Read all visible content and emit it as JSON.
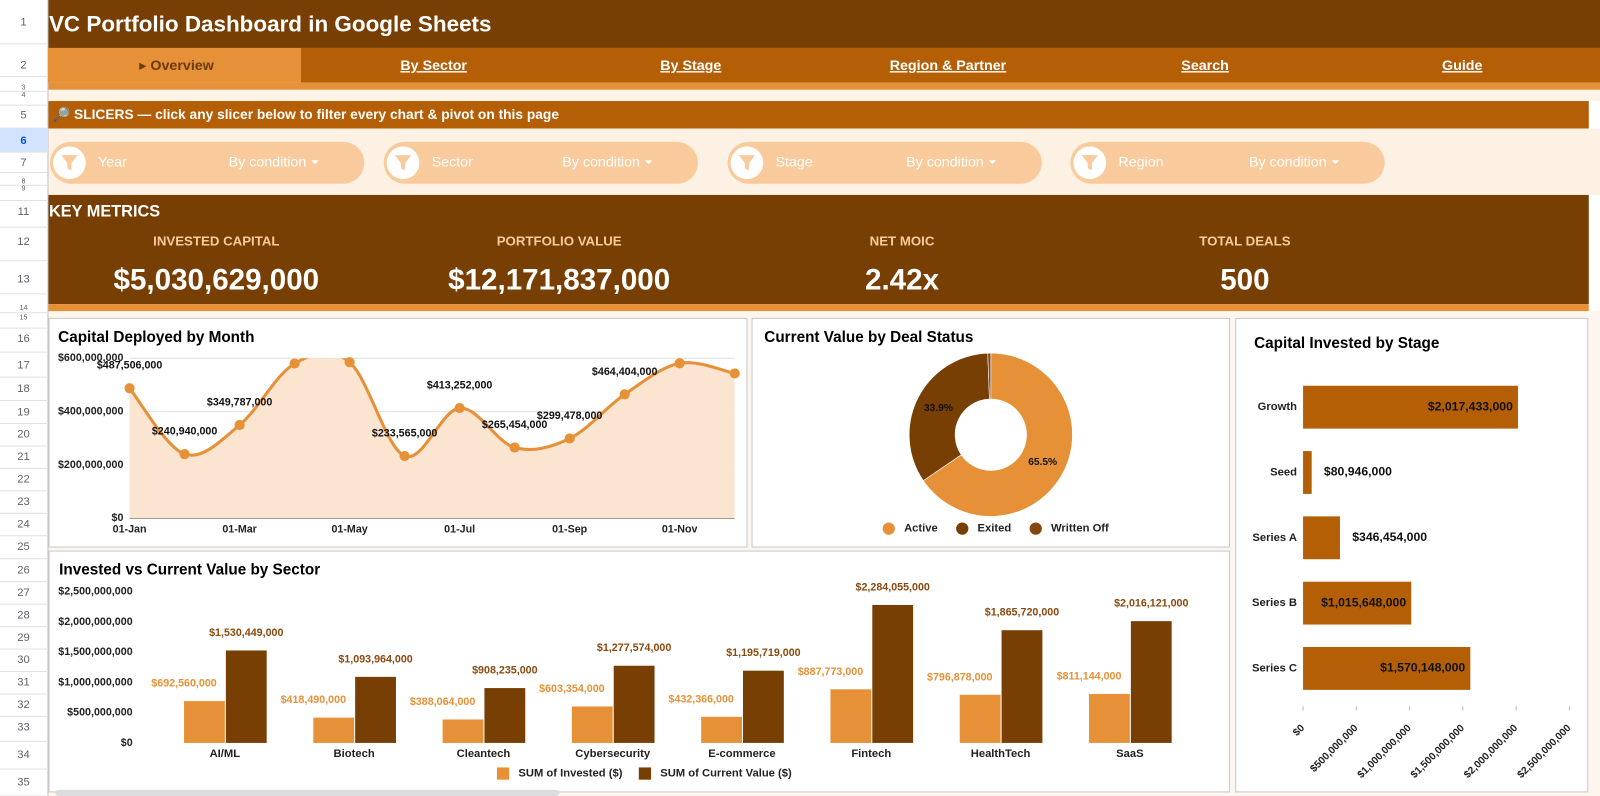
{
  "header": {
    "title": "VC Portfolio Dashboard in Google Sheets"
  },
  "row_headers": [
    1,
    2,
    3,
    4,
    5,
    6,
    7,
    8,
    9,
    11,
    12,
    13,
    14,
    15,
    16,
    17,
    18,
    19,
    20,
    21,
    22,
    23,
    24,
    25,
    26,
    27,
    28,
    29,
    30,
    31,
    32,
    33,
    34,
    35
  ],
  "selected_row": 6,
  "tabs": [
    "▸  Overview",
    "By Sector",
    "By Stage",
    "Region & Partner",
    "Search",
    "Guide"
  ],
  "active_tab": 0,
  "slicer_banner": "🔎  SLICERS  —  click any slicer below to filter every chart & pivot on this page",
  "slicers": [
    {
      "field": "Year",
      "condition": "By condition"
    },
    {
      "field": "Sector",
      "condition": "By condition"
    },
    {
      "field": "Stage",
      "condition": "By condition"
    },
    {
      "field": "Region",
      "condition": "By condition"
    }
  ],
  "key_metrics": {
    "title": "KEY METRICS",
    "items": [
      {
        "label": "INVESTED CAPITAL",
        "value": "$5,030,629,000"
      },
      {
        "label": "PORTFOLIO VALUE",
        "value": "$12,171,837,000"
      },
      {
        "label": "NET MOIC",
        "value": "2.42x"
      },
      {
        "label": "TOTAL DEALS",
        "value": "500"
      }
    ]
  },
  "chart_data": [
    {
      "type": "area",
      "title": "Capital Deployed by Month",
      "categories": [
        "01-Jan",
        null,
        "01-Mar",
        null,
        "01-May",
        null,
        "01-Jul",
        null,
        "01-Sep",
        null,
        "01-Nov",
        null
      ],
      "values": [
        487506000,
        240940000,
        349787000,
        580000000,
        585000000,
        233565000,
        413252000,
        265454000,
        299478000,
        464404000,
        581000000,
        543000000
      ],
      "value_labels": [
        "$487,506,000",
        "$240,940,000",
        "$349,787,000",
        null,
        null,
        "$233,565,000",
        "$413,252,000",
        "$265,454,000",
        "$299,478,000",
        "$464,404,000",
        null,
        null
      ],
      "color": "#e69138",
      "fill_color": "#fbe4d0",
      "ylim": [
        0,
        600000000
      ],
      "yticks": [
        {
          "value": 0,
          "label": "$0"
        },
        {
          "value": 200000000,
          "label": "$200,000,000"
        },
        {
          "value": 400000000,
          "label": "$400,000,000"
        },
        {
          "value": 600000000,
          "label": "$600,000,000"
        }
      ],
      "grid": true
    },
    {
      "type": "donut",
      "title": "Current Value by Deal Status",
      "categories": [
        "Active",
        "Exited",
        "Written Off"
      ],
      "values": [
        65.5,
        33.9,
        0.6
      ],
      "value_labels": [
        "65.5%",
        "33.9%",
        null
      ],
      "colors": [
        "#e69138",
        "#783f04",
        "#86460f"
      ],
      "legend": "bottom"
    },
    {
      "type": "hbar",
      "title": "Capital Invested by Stage",
      "categories": [
        "Growth",
        "Seed",
        "Series A",
        "Series B",
        "Series C"
      ],
      "values": [
        2017433000,
        80946000,
        346454000,
        1015648000,
        1570148000
      ],
      "value_labels": [
        "$2,017,433,000",
        "$80,946,000",
        "$346,454,000",
        "$1,015,648,000",
        "$1,570,148,000"
      ],
      "color": "#b45f06",
      "xlim": [
        0,
        2500000000
      ],
      "xticks": [
        {
          "value": 0,
          "label": "$0"
        },
        {
          "value": 500000000,
          "label": "$500,000,000"
        },
        {
          "value": 1000000000,
          "label": "$1,000,000,000"
        },
        {
          "value": 1500000000,
          "label": "$1,500,000,000"
        },
        {
          "value": 2000000000,
          "label": "$2,000,000,000"
        },
        {
          "value": 2500000000,
          "label": "$2,500,000,000"
        }
      ]
    },
    {
      "type": "bar",
      "title": "Invested vs Current Value by Sector",
      "categories": [
        "AI/ML",
        "Biotech",
        "Cleantech",
        "Cybersecurity",
        "E-commerce",
        "Fintech",
        "HealthTech",
        "SaaS"
      ],
      "series": [
        {
          "name": "SUM of Invested ($)",
          "color": "#e69138",
          "values": [
            692560000,
            418490000,
            388064000,
            603354000,
            432366000,
            887773000,
            796878000,
            811144000
          ],
          "value_labels": [
            "$692,560,000",
            "$418,490,000",
            "$388,064,000",
            "$603,354,000",
            "$432,366,000",
            "$887,773,000",
            "$796,878,000",
            "$811,144,000"
          ]
        },
        {
          "name": "SUM of Current Value ($)",
          "color": "#783f04",
          "values": [
            1530449000,
            1093964000,
            908235000,
            1277574000,
            1195719000,
            2284055000,
            1865720000,
            2016121000
          ],
          "value_labels": [
            "$1,530,449,000",
            "$1,093,964,000",
            "$908,235,000",
            "$1,277,574,000",
            "$1,195,719,000",
            "$2,284,055,000",
            "$1,865,720,000",
            "$2,016,121,000"
          ]
        }
      ],
      "ylim": [
        0,
        2500000000
      ],
      "yticks": [
        {
          "value": 0,
          "label": "$0"
        },
        {
          "value": 500000000,
          "label": "$500,000,000"
        },
        {
          "value": 1000000000,
          "label": "$1,000,000,000"
        },
        {
          "value": 1500000000,
          "label": "$1,500,000,000"
        },
        {
          "value": 2000000000,
          "label": "$2,000,000,000"
        },
        {
          "value": 2500000000,
          "label": "$2,500,000,000"
        }
      ],
      "grid": false,
      "legend": "bottom"
    }
  ]
}
